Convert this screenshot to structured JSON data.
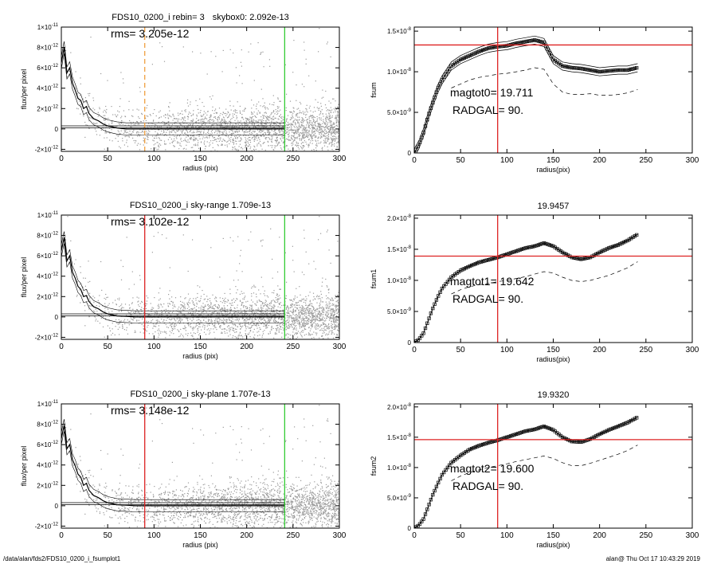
{
  "footer": {
    "path": "/data/alan/fds2/FDS10_0200_i_fsumplot1",
    "stamp": "alan@  Thu Oct 17 10:43:29 2019"
  },
  "colors": {
    "points": "#9a9a9a",
    "profile": "#000000",
    "marker_red": "#dd2222",
    "marker_orange": "#f0a040",
    "marker_green": "#33cc33",
    "hline_red": "#dd2222"
  },
  "chart_data": [
    {
      "type": "scatter",
      "title_left": "FDS10_0200_i rebin= 3",
      "title_right": "skybox0:  2.092e-13",
      "rms_text": "rms= 3.205e-12",
      "xlabel": "radius (pix)",
      "ylabel": "flux/per pixel",
      "xlim": [
        0,
        300
      ],
      "ylim": [
        -2.2e-12,
        1e-11
      ],
      "x_ticks": [
        "0",
        "50",
        "100",
        "150",
        "200",
        "250",
        "300"
      ],
      "y_ticks": [
        {
          "base": "-2×10",
          "exp": "-12",
          "value": -2e-12
        },
        {
          "base": "0",
          "exp": "",
          "value": 0
        },
        {
          "base": "2×10",
          "exp": "-12",
          "value": 2e-12
        },
        {
          "base": "4×10",
          "exp": "-12",
          "value": 4e-12
        },
        {
          "base": "6×10",
          "exp": "-12",
          "value": 6e-12
        },
        {
          "base": "8×10",
          "exp": "-12",
          "value": 8e-12
        },
        {
          "base": "1×10",
          "exp": "-11",
          "value": 1e-11
        }
      ],
      "radgal_line": {
        "x": 90,
        "style": "dashed",
        "color": "orange"
      },
      "outer_line": {
        "x": 241,
        "color": "green"
      },
      "profile": {
        "x": [
          0,
          3,
          6,
          9,
          12,
          15,
          18,
          21,
          24,
          27,
          30,
          35,
          40,
          45,
          50,
          60,
          70,
          80,
          90,
          100,
          120,
          140,
          160,
          180,
          200,
          220,
          241
        ],
        "y": [
          6.5e-12,
          8e-12,
          5.5e-12,
          6e-12,
          4.5e-12,
          3.8e-12,
          3e-12,
          2.8e-12,
          2e-12,
          2.2e-12,
          1.5e-12,
          1e-12,
          8e-13,
          5e-13,
          3e-13,
          1e-13,
          0.0,
          0.0,
          0.0,
          0.0,
          0.0,
          0.0,
          0.0,
          0.0,
          0.0,
          0.0,
          0.0
        ]
      },
      "sky_lines": [
        1e-13,
        3e-13
      ]
    },
    {
      "type": "line",
      "annotations": [
        "magtot0= 19.711",
        "RADGAL=     90."
      ],
      "title": "",
      "xlabel": "radius(pix)",
      "ylabel": "fsum",
      "xlim": [
        0,
        300
      ],
      "ylim": [
        0,
        1.55e-08
      ],
      "x_ticks": [
        "0",
        "50",
        "100",
        "150",
        "200",
        "250",
        "300"
      ],
      "y_ticks": [
        {
          "base": "0",
          "exp": "",
          "value": 0
        },
        {
          "base": "5.0×10",
          "exp": "-9",
          "value": 5e-09
        },
        {
          "base": "1.0×10",
          "exp": "-8",
          "value": 1e-08
        },
        {
          "base": "1.5×10",
          "exp": "-8",
          "value": 1.5e-08
        }
      ],
      "vline": 90,
      "hline": 1.33e-08,
      "series": [
        {
          "style": "markers",
          "x": [
            0,
            5,
            10,
            15,
            20,
            25,
            30,
            40,
            50,
            60,
            70,
            80,
            90,
            100,
            110,
            120,
            130,
            140,
            150,
            160,
            170,
            180,
            190,
            200,
            210,
            220,
            230,
            241
          ],
          "y": [
            0,
            1e-09,
            2.5e-09,
            4.5e-09,
            6.2e-09,
            7.8e-09,
            9e-09,
            1.07e-08,
            1.15e-08,
            1.2e-08,
            1.25e-08,
            1.29e-08,
            1.31e-08,
            1.32e-08,
            1.35e-08,
            1.37e-08,
            1.39e-08,
            1.36e-08,
            1.15e-08,
            1.07e-08,
            1.05e-08,
            1.04e-08,
            1.02e-08,
            1e-08,
            1.01e-08,
            1.02e-08,
            1.02e-08,
            1.05e-08
          ]
        },
        {
          "style": "thin",
          "offset": 5e-10
        },
        {
          "style": "thin",
          "offset": -5e-10
        },
        {
          "style": "dashed",
          "x": [
            40,
            50,
            60,
            70,
            80,
            90,
            100,
            110,
            120,
            130,
            140,
            150,
            160,
            170,
            180,
            190,
            200,
            210,
            220,
            230,
            241
          ],
          "y": [
            8e-09,
            8.5e-09,
            9e-09,
            9.3e-09,
            9.5e-09,
            9.7e-09,
            9.8e-09,
            1e-08,
            1.02e-08,
            1.05e-08,
            1.03e-08,
            8.5e-09,
            7.5e-09,
            7.2e-09,
            7.2e-09,
            7.3e-09,
            7.1e-09,
            7.1e-09,
            7.2e-09,
            7.4e-09,
            7.8e-09
          ]
        }
      ]
    },
    {
      "type": "scatter",
      "title_left": "FDS10_0200_i sky-range  1.709e-13",
      "title_right": "",
      "rms_text": "rms= 3.102e-12",
      "xlabel": "radius (pix)",
      "ylabel": "flux/per pixel",
      "xlim": [
        0,
        300
      ],
      "ylim": [
        -2.2e-12,
        1e-11
      ],
      "x_ticks": [
        "0",
        "50",
        "100",
        "150",
        "200",
        "250",
        "300"
      ],
      "y_ticks": [
        {
          "base": "-2×10",
          "exp": "-12",
          "value": -2e-12
        },
        {
          "base": "0",
          "exp": "",
          "value": 0
        },
        {
          "base": "2×10",
          "exp": "-12",
          "value": 2e-12
        },
        {
          "base": "4×10",
          "exp": "-12",
          "value": 4e-12
        },
        {
          "base": "6×10",
          "exp": "-12",
          "value": 6e-12
        },
        {
          "base": "8×10",
          "exp": "-12",
          "value": 8e-12
        },
        {
          "base": "1×10",
          "exp": "-11",
          "value": 1e-11
        }
      ],
      "radgal_line": {
        "x": 90,
        "style": "solid",
        "color": "red"
      },
      "outer_line": {
        "x": 241,
        "color": "green"
      },
      "profile": {
        "x": [
          0,
          3,
          6,
          9,
          12,
          15,
          18,
          21,
          24,
          27,
          30,
          35,
          40,
          45,
          50,
          60,
          70,
          80,
          90,
          100,
          120,
          140,
          160,
          180,
          200,
          220,
          241
        ],
        "y": [
          6.5e-12,
          7.8e-12,
          5.5e-12,
          6e-12,
          4.4e-12,
          3.8e-12,
          3e-12,
          2.7e-12,
          2e-12,
          2.1e-12,
          1.5e-12,
          1e-12,
          8e-13,
          5e-13,
          3e-13,
          1e-13,
          5e-14,
          0.0,
          0.0,
          0.0,
          0.0,
          0.0,
          0.0,
          0.0,
          0.0,
          0.0,
          0.0
        ]
      },
      "sky_lines": [
        1e-13,
        3e-13
      ]
    },
    {
      "type": "line",
      "title": "19.9457",
      "annotations": [
        "magtot1= 19.642",
        "RADGAL=     90."
      ],
      "xlabel": "radius(pix)",
      "ylabel": "fsum1",
      "xlim": [
        0,
        300
      ],
      "ylim": [
        0,
        2.05e-08
      ],
      "x_ticks": [
        "0",
        "50",
        "100",
        "150",
        "200",
        "250",
        "300"
      ],
      "y_ticks": [
        {
          "base": "0",
          "exp": "",
          "value": 0
        },
        {
          "base": "5.0×10",
          "exp": "-9",
          "value": 5e-09
        },
        {
          "base": "1.0×10",
          "exp": "-8",
          "value": 1e-08
        },
        {
          "base": "1.5×10",
          "exp": "-8",
          "value": 1.5e-08
        },
        {
          "base": "2.0×10",
          "exp": "-8",
          "value": 2e-08
        }
      ],
      "vline": 90,
      "hline": 1.39e-08,
      "series": [
        {
          "style": "markers",
          "x": [
            0,
            5,
            10,
            15,
            20,
            25,
            30,
            40,
            50,
            60,
            70,
            80,
            90,
            100,
            110,
            120,
            130,
            140,
            150,
            160,
            170,
            180,
            190,
            200,
            210,
            220,
            230,
            241
          ],
          "y": [
            0,
            5e-10,
            1.5e-09,
            3.5e-09,
            5.5e-09,
            7.2e-09,
            8.7e-09,
            1.05e-08,
            1.16e-08,
            1.23e-08,
            1.29e-08,
            1.33e-08,
            1.37e-08,
            1.42e-08,
            1.47e-08,
            1.52e-08,
            1.55e-08,
            1.6e-08,
            1.55e-08,
            1.45e-08,
            1.37e-08,
            1.34e-08,
            1.37e-08,
            1.45e-08,
            1.52e-08,
            1.57e-08,
            1.64e-08,
            1.74e-08
          ]
        },
        {
          "style": "dashed",
          "x": [
            40,
            50,
            60,
            70,
            80,
            90,
            100,
            110,
            120,
            130,
            140,
            150,
            160,
            170,
            180,
            190,
            200,
            210,
            220,
            230,
            241
          ],
          "y": [
            7.8e-09,
            8.5e-09,
            9e-09,
            9.3e-09,
            9.5e-09,
            9.8e-09,
            1e-08,
            1.03e-08,
            1.06e-08,
            1.1e-08,
            1.14e-08,
            1.12e-08,
            1.05e-08,
            1e-08,
            9.8e-09,
            1e-08,
            1.04e-08,
            1.08e-08,
            1.14e-08,
            1.2e-08,
            1.3e-08
          ]
        }
      ]
    },
    {
      "type": "scatter",
      "title_left": "FDS10_0200_i sky-plane  1.707e-13",
      "title_right": "",
      "rms_text": "rms= 3.148e-12",
      "xlabel": "radius (pix)",
      "ylabel": "flux/per pixel",
      "xlim": [
        0,
        300
      ],
      "ylim": [
        -2.2e-12,
        1e-11
      ],
      "x_ticks": [
        "0",
        "50",
        "100",
        "150",
        "200",
        "250",
        "300"
      ],
      "y_ticks": [
        {
          "base": "-2×10",
          "exp": "-12",
          "value": -2e-12
        },
        {
          "base": "0",
          "exp": "",
          "value": 0
        },
        {
          "base": "2×10",
          "exp": "-12",
          "value": 2e-12
        },
        {
          "base": "4×10",
          "exp": "-12",
          "value": 4e-12
        },
        {
          "base": "6×10",
          "exp": "-12",
          "value": 6e-12
        },
        {
          "base": "8×10",
          "exp": "-12",
          "value": 8e-12
        },
        {
          "base": "1×10",
          "exp": "-11",
          "value": 1e-11
        }
      ],
      "radgal_line": {
        "x": 90,
        "style": "solid",
        "color": "red"
      },
      "outer_line": {
        "x": 241,
        "color": "green"
      },
      "profile": {
        "x": [
          0,
          3,
          6,
          9,
          12,
          15,
          18,
          21,
          24,
          27,
          30,
          35,
          40,
          45,
          50,
          60,
          70,
          80,
          90,
          100,
          120,
          140,
          160,
          180,
          200,
          220,
          241
        ],
        "y": [
          6.6e-12,
          7.9e-12,
          5.6e-12,
          6e-12,
          4.5e-12,
          3.9e-12,
          3.1e-12,
          2.8e-12,
          2e-12,
          2.2e-12,
          1.5e-12,
          1e-12,
          8e-13,
          5e-13,
          3e-13,
          1e-13,
          5e-14,
          0.0,
          0.0,
          0.0,
          0.0,
          0.0,
          0.0,
          0.0,
          0.0,
          0.0,
          0.0
        ]
      },
      "sky_lines": [
        1e-13,
        3e-13
      ]
    },
    {
      "type": "line",
      "title": "19.9320",
      "annotations": [
        "magtot2= 19.600",
        "RADGAL=     90."
      ],
      "xlabel": "radius(pix)",
      "ylabel": "fsum2",
      "xlim": [
        0,
        300
      ],
      "ylim": [
        0,
        2.05e-08
      ],
      "x_ticks": [
        "0",
        "50",
        "100",
        "150",
        "200",
        "250",
        "300"
      ],
      "y_ticks": [
        {
          "base": "0",
          "exp": "",
          "value": 0
        },
        {
          "base": "5.0×10",
          "exp": "-9",
          "value": 5e-09
        },
        {
          "base": "1.0×10",
          "exp": "-8",
          "value": 1e-08
        },
        {
          "base": "1.5×10",
          "exp": "-8",
          "value": 1.5e-08
        },
        {
          "base": "2.0×10",
          "exp": "-8",
          "value": 2e-08
        }
      ],
      "vline": 90,
      "hline": 1.46e-08,
      "series": [
        {
          "style": "markers",
          "x": [
            0,
            5,
            10,
            15,
            20,
            25,
            30,
            40,
            50,
            60,
            70,
            80,
            90,
            100,
            110,
            120,
            130,
            140,
            150,
            160,
            170,
            180,
            190,
            200,
            210,
            220,
            230,
            241
          ],
          "y": [
            0,
            5e-10,
            1.5e-09,
            3.5e-09,
            5.5e-09,
            7.2e-09,
            8.8e-09,
            1.08e-08,
            1.2e-08,
            1.3e-08,
            1.36e-08,
            1.41e-08,
            1.45e-08,
            1.5e-08,
            1.55e-08,
            1.6e-08,
            1.63e-08,
            1.68e-08,
            1.62e-08,
            1.5e-08,
            1.43e-08,
            1.42e-08,
            1.47e-08,
            1.55e-08,
            1.62e-08,
            1.68e-08,
            1.74e-08,
            1.83e-08
          ]
        },
        {
          "style": "dashed",
          "x": [
            40,
            50,
            60,
            70,
            80,
            90,
            100,
            110,
            120,
            130,
            140,
            150,
            160,
            170,
            180,
            190,
            200,
            210,
            220,
            230,
            241
          ],
          "y": [
            7.8e-09,
            8.6e-09,
            9.2e-09,
            9.6e-09,
            1e-08,
            1.03e-08,
            1.06e-08,
            1.1e-08,
            1.13e-08,
            1.16e-08,
            1.19e-08,
            1.15e-08,
            1.08e-08,
            1.03e-08,
            1.03e-08,
            1.07e-08,
            1.12e-08,
            1.17e-08,
            1.22e-08,
            1.28e-08,
            1.37e-08
          ]
        }
      ]
    }
  ]
}
